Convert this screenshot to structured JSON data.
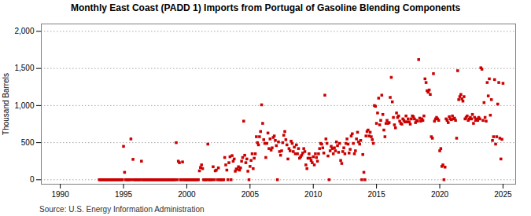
{
  "chart_data": {
    "type": "scatter",
    "title": "Monthly East Coast (PADD 1) Imports from Portugal of Gasoline Blending Components",
    "ylabel": "Thousand Barrels",
    "source": "Source: U.S. Energy Information Administration",
    "color": "#cc0000",
    "marker": "square",
    "grid": true,
    "xlim": [
      1988.5,
      2026.0
    ],
    "xticks": [
      1990,
      1995,
      2000,
      2005,
      2010,
      2015,
      2020,
      2025
    ],
    "ylim": [
      -60,
      2100
    ],
    "yticks": [
      0,
      500,
      {
        "value": 1000,
        "label": "1,000"
      },
      {
        "value": 1500,
        "label": "1,500"
      },
      {
        "value": 2000,
        "label": "2,000"
      }
    ],
    "x": [
      1993.083,
      1993.167,
      1993.25,
      1993.333,
      1993.417,
      1993.5,
      1993.583,
      1993.667,
      1993.75,
      1993.833,
      1993.917,
      1994.0,
      1994.083,
      1994.167,
      1994.25,
      1994.333,
      1994.417,
      1994.5,
      1994.583,
      1994.667,
      1994.75,
      1994.833,
      1994.917,
      1995.0,
      1995.083,
      1995.167,
      1995.25,
      1995.333,
      1995.417,
      1995.5,
      1995.583,
      1995.667,
      1995.75,
      1995.833,
      1995.917,
      1996.0,
      1996.083,
      1996.167,
      1996.25,
      1996.333,
      1996.417,
      1996.5,
      1996.583,
      1996.667,
      1996.75,
      1996.833,
      1996.917,
      1997.0,
      1997.083,
      1997.167,
      1997.25,
      1997.333,
      1997.417,
      1997.5,
      1997.583,
      1997.667,
      1997.75,
      1997.833,
      1997.917,
      1998.0,
      1998.083,
      1998.167,
      1998.25,
      1998.333,
      1998.417,
      1998.5,
      1998.583,
      1998.667,
      1998.75,
      1998.833,
      1998.917,
      1999.0,
      1999.083,
      1999.167,
      1999.25,
      1999.333,
      1999.417,
      1999.5,
      1999.583,
      1999.667,
      1999.75,
      1999.833,
      1999.917,
      2000.0,
      2000.083,
      2000.167,
      2000.25,
      2000.333,
      2000.417,
      2000.5,
      2000.583,
      2000.667,
      2000.75,
      2000.833,
      2000.917,
      2001.0,
      2001.083,
      2001.167,
      2001.25,
      2001.333,
      2001.417,
      2001.5,
      2001.583,
      2001.667,
      2001.75,
      2001.833,
      2001.917,
      2002.0,
      2002.083,
      2002.167,
      2002.25,
      2002.333,
      2002.417,
      2002.5,
      2002.583,
      2002.667,
      2002.75,
      2002.833,
      2002.917,
      2003.0,
      2003.083,
      2003.167,
      2003.25,
      2003.333,
      2003.417,
      2003.5,
      2003.583,
      2003.667,
      2003.75,
      2003.833,
      2003.917,
      2004.0,
      2004.083,
      2004.167,
      2004.25,
      2004.333,
      2004.417,
      2004.5,
      2004.583,
      2004.667,
      2004.75,
      2004.833,
      2004.917,
      2005.0,
      2005.083,
      2005.167,
      2005.25,
      2005.333,
      2005.417,
      2005.5,
      2005.583,
      2005.667,
      2005.75,
      2005.833,
      2005.917,
      2006.0,
      2006.083,
      2006.167,
      2006.25,
      2006.333,
      2006.417,
      2006.5,
      2006.583,
      2006.667,
      2006.75,
      2006.833,
      2006.917,
      2007.0,
      2007.083,
      2007.167,
      2007.25,
      2007.333,
      2007.417,
      2007.5,
      2007.583,
      2007.667,
      2007.75,
      2007.833,
      2007.917,
      2008.0,
      2008.083,
      2008.167,
      2008.25,
      2008.333,
      2008.417,
      2008.5,
      2008.583,
      2008.667,
      2008.75,
      2008.833,
      2008.917,
      2009.0,
      2009.083,
      2009.167,
      2009.25,
      2009.333,
      2009.417,
      2009.5,
      2009.583,
      2009.667,
      2009.75,
      2009.833,
      2009.917,
      2010.0,
      2010.083,
      2010.167,
      2010.25,
      2010.333,
      2010.417,
      2010.5,
      2010.583,
      2010.667,
      2010.75,
      2010.833,
      2010.917,
      2011.0,
      2011.083,
      2011.167,
      2011.25,
      2011.333,
      2011.417,
      2011.5,
      2011.583,
      2011.667,
      2011.75,
      2011.833,
      2011.917,
      2012.0,
      2012.083,
      2012.167,
      2012.25,
      2012.333,
      2012.417,
      2012.5,
      2012.583,
      2012.667,
      2012.75,
      2012.833,
      2012.917,
      2013.0,
      2013.083,
      2013.167,
      2013.25,
      2013.333,
      2013.417,
      2013.5,
      2013.583,
      2013.667,
      2013.75,
      2013.833,
      2013.917,
      2014.0,
      2014.083,
      2014.167,
      2014.25,
      2014.333,
      2014.417,
      2014.5,
      2014.583,
      2014.667,
      2014.75,
      2014.833,
      2014.917,
      2015.0,
      2015.083,
      2015.167,
      2015.25,
      2015.333,
      2015.417,
      2015.5,
      2015.583,
      2015.667,
      2015.75,
      2015.833,
      2015.917,
      2016.0,
      2016.083,
      2016.167,
      2016.25,
      2016.333,
      2016.417,
      2016.5,
      2016.583,
      2016.667,
      2016.75,
      2016.833,
      2016.917,
      2017.0,
      2017.083,
      2017.167,
      2017.25,
      2017.333,
      2017.417,
      2017.5,
      2017.583,
      2017.667,
      2017.75,
      2017.833,
      2017.917,
      2018.0,
      2018.083,
      2018.167,
      2018.25,
      2018.333,
      2018.417,
      2018.5,
      2018.583,
      2018.667,
      2018.75,
      2018.833,
      2018.917,
      2019.0,
      2019.083,
      2019.167,
      2019.25,
      2019.333,
      2019.417,
      2019.5,
      2019.583,
      2019.667,
      2019.75,
      2019.833,
      2019.917,
      2020.0,
      2020.083,
      2020.167,
      2020.25,
      2020.333,
      2020.417,
      2020.5,
      2020.583,
      2020.667,
      2020.75,
      2020.833,
      2020.917,
      2021.0,
      2021.083,
      2021.167,
      2021.25,
      2021.333,
      2021.417,
      2021.5,
      2021.583,
      2021.667,
      2021.75,
      2021.833,
      2021.917,
      2022.0,
      2022.083,
      2022.167,
      2022.25,
      2022.333,
      2022.417,
      2022.5,
      2022.583,
      2022.667,
      2022.75,
      2022.833,
      2022.917,
      2023.0,
      2023.083,
      2023.167,
      2023.25,
      2023.333,
      2023.417,
      2023.5,
      2023.583,
      2023.667,
      2023.75,
      2023.833,
      2023.917,
      2024.0,
      2024.083,
      2024.167,
      2024.25,
      2024.333,
      2024.417,
      2024.5,
      2024.583,
      2024.667,
      2024.75,
      2024.833,
      2024.917,
      2025.0
    ],
    "values": [
      0,
      0,
      0,
      0,
      0,
      0,
      0,
      0,
      0,
      0,
      0,
      0,
      0,
      0,
      0,
      0,
      0,
      0,
      0,
      0,
      0,
      0,
      0,
      450,
      100,
      0,
      0,
      0,
      0,
      0,
      550,
      0,
      275,
      0,
      0,
      0,
      0,
      0,
      0,
      0,
      250,
      0,
      0,
      0,
      0,
      0,
      0,
      0,
      0,
      0,
      0,
      0,
      0,
      0,
      0,
      0,
      0,
      0,
      0,
      0,
      0,
      0,
      0,
      0,
      0,
      0,
      0,
      0,
      0,
      0,
      0,
      0,
      0,
      500,
      0,
      250,
      230,
      0,
      0,
      240,
      0,
      0,
      0,
      0,
      0,
      0,
      0,
      0,
      0,
      0,
      0,
      0,
      0,
      0,
      0,
      120,
      165,
      200,
      150,
      0,
      0,
      0,
      0,
      480,
      0,
      0,
      0,
      0,
      175,
      0,
      120,
      130,
      0,
      160,
      0,
      0,
      0,
      0,
      0,
      300,
      200,
      130,
      0,
      230,
      310,
      0,
      325,
      250,
      280,
      115,
      145,
      140,
      175,
      130,
      160,
      250,
      300,
      790,
      330,
      230,
      280,
      115,
      0,
      180,
      260,
      350,
      150,
      290,
      350,
      580,
      500,
      470,
      580,
      650,
      1010,
      760,
      540,
      490,
      300,
      490,
      630,
      420,
      550,
      400,
      430,
      570,
      590,
      530,
      460,
      0,
      510,
      380,
      330,
      390,
      500,
      600,
      650,
      540,
      470,
      280,
      420,
      390,
      520,
      490,
      380,
      440,
      350,
      470,
      350,
      420,
      290,
      310,
      330,
      360,
      420,
      380,
      200,
      150,
      290,
      350,
      290,
      260,
      230,
      310,
      200,
      350,
      300,
      250,
      350,
      420,
      490,
      480,
      430,
      360,
      1140,
      550,
      490,
      320,
      0,
      390,
      450,
      420,
      350,
      430,
      390,
      510,
      460,
      370,
      490,
      260,
      220,
      380,
      430,
      350,
      490,
      550,
      480,
      360,
      410,
      590,
      620,
      490,
      350,
      390,
      550,
      640,
      510,
      480,
      530,
      0,
      340,
      100,
      0,
      590,
      650,
      670,
      590,
      640,
      580,
      540,
      490,
      1000,
      990,
      760,
      900,
      1100,
      740,
      800,
      1140,
      880,
      670,
      580,
      760,
      800,
      760,
      770,
      1110,
      1380,
      1050,
      840,
      740,
      700,
      900,
      840,
      860,
      790,
      760,
      750,
      820,
      800,
      780,
      860,
      780,
      820,
      780,
      750,
      820,
      860,
      850,
      820,
      770,
      800,
      790,
      1620,
      830,
      790,
      820,
      800,
      860,
      1360,
      1310,
      1200,
      1180,
      1210,
      1150,
      580,
      560,
      1430,
      790,
      820,
      840,
      820,
      800,
      390,
      420,
      180,
      200,
      0,
      170,
      820,
      800,
      770,
      850,
      820,
      810,
      860,
      820,
      830,
      800,
      560,
      1470,
      1080,
      1120,
      1150,
      1090,
      1060,
      1120,
      820,
      840,
      860,
      800,
      820,
      840,
      820,
      880,
      760,
      840,
      800,
      820,
      800,
      840,
      820,
      1510,
      1490,
      800,
      1040,
      840,
      790,
      1310,
      1130,
      1360,
      870,
      1080,
      530,
      580,
      1350,
      480,
      580,
      1020,
      1310,
      560,
      280,
      545,
      1300
    ]
  }
}
